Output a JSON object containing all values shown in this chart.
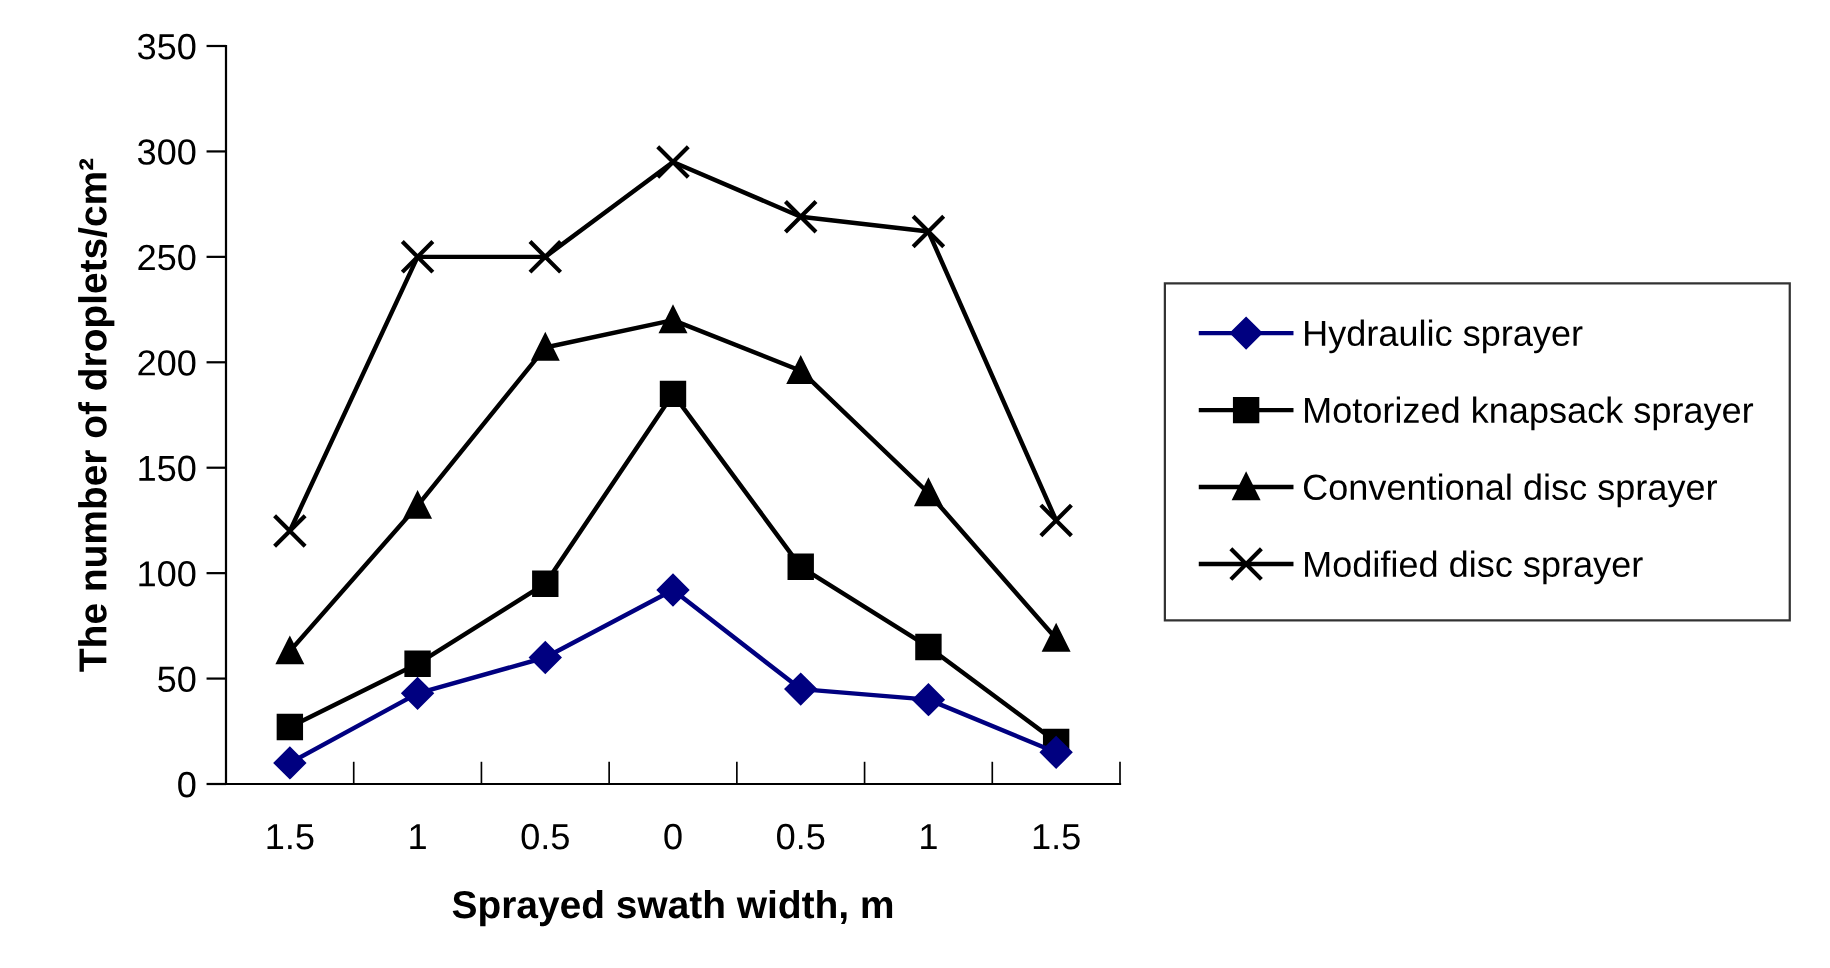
{
  "chart_data": {
    "type": "line",
    "xlabel": "Sprayed swath width, m",
    "ylabel": "The number of droplets/cm²",
    "categories": [
      "1.5",
      "1",
      "0.5",
      "0",
      "0.5",
      "1",
      "1.5"
    ],
    "series": [
      {
        "name": "Hydraulic sprayer",
        "color": "#000080",
        "marker": "diamond",
        "values": [
          10,
          43,
          60,
          92,
          45,
          40,
          15
        ]
      },
      {
        "name": "Motorized knapsack sprayer",
        "color": "#000000",
        "marker": "square",
        "values": [
          27,
          57,
          95,
          185,
          103,
          65,
          20
        ]
      },
      {
        "name": "Conventional disc sprayer",
        "color": "#000000",
        "marker": "triangle",
        "values": [
          63,
          132,
          207,
          220,
          196,
          138,
          69
        ]
      },
      {
        "name": "Modified disc sprayer",
        "color": "#000000",
        "marker": "cross",
        "values": [
          120,
          250,
          250,
          295,
          269,
          262,
          125
        ]
      }
    ],
    "ylim": [
      0,
      350
    ],
    "yticks": [
      0,
      50,
      100,
      150,
      200,
      250,
      300,
      350
    ],
    "grid": false,
    "legend": "right",
    "line_style": "solid"
  }
}
